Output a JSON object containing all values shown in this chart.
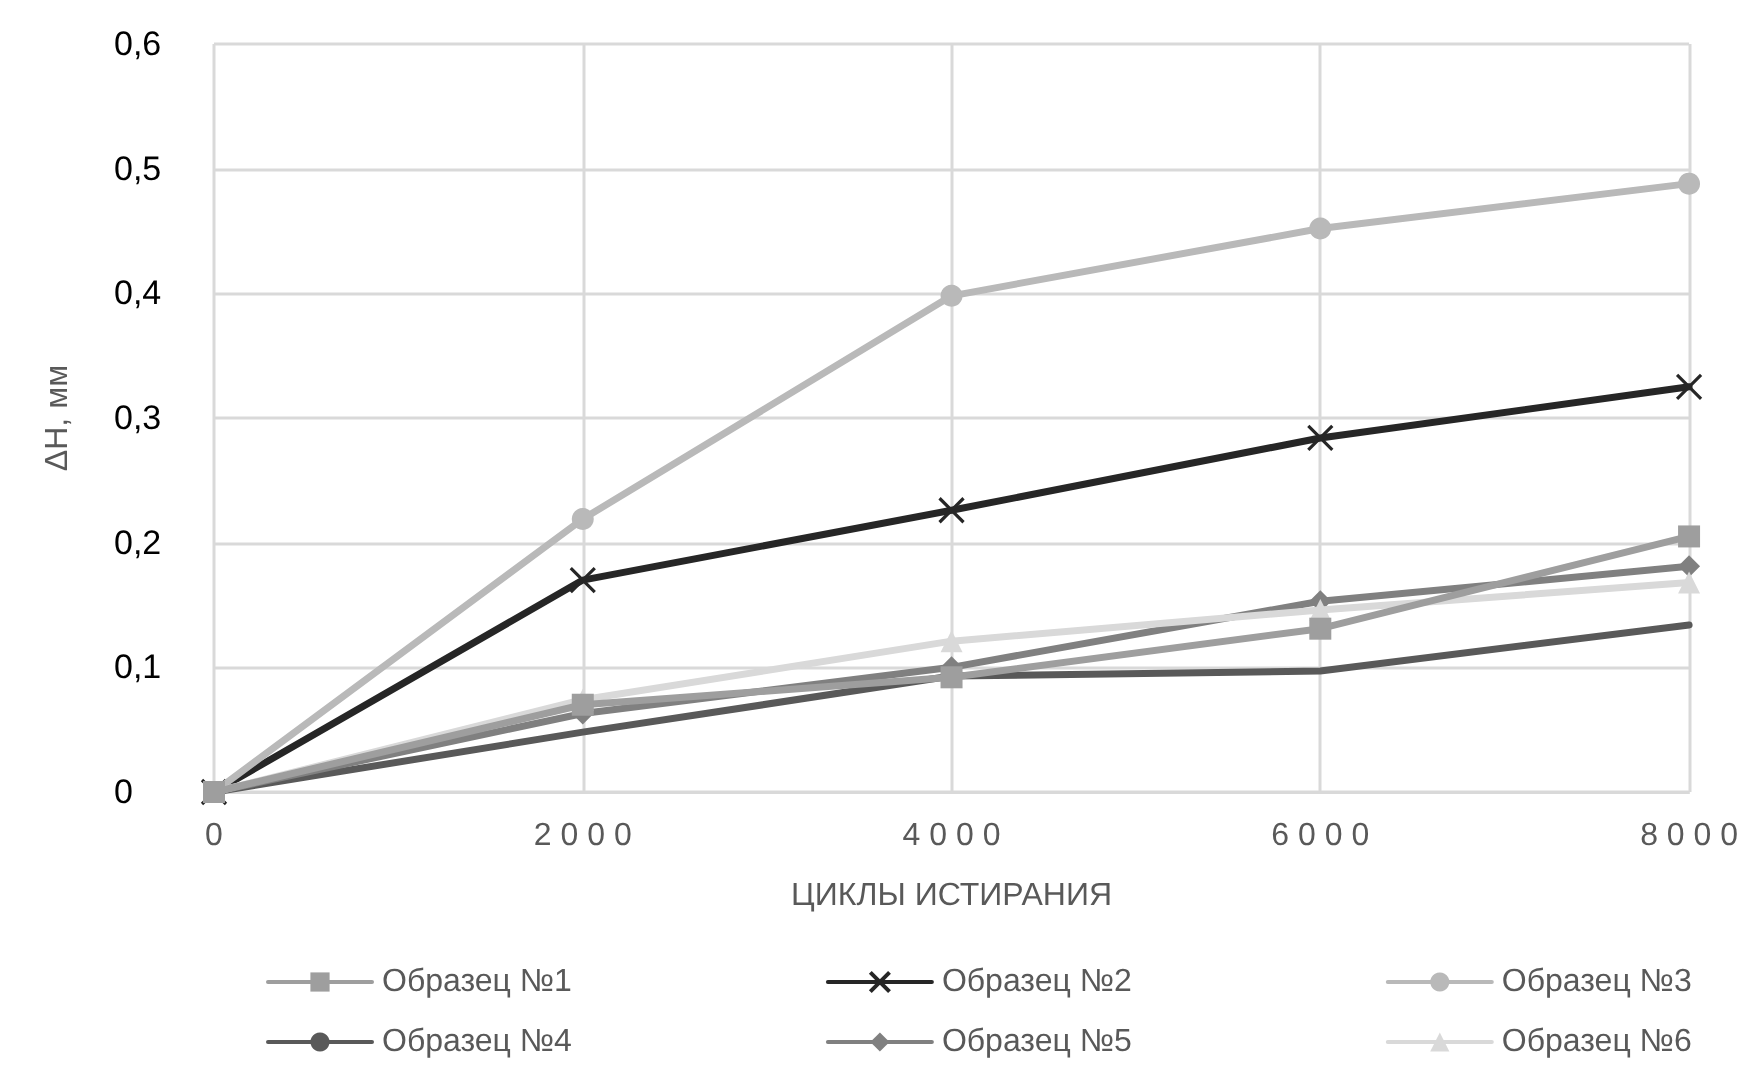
{
  "chart_data": {
    "type": "line",
    "xlabel": "ЦИКЛЫ ИСТИРАНИЯ",
    "ylabel": "ΔH, мм",
    "x": [
      0,
      2000,
      4000,
      6000,
      8000
    ],
    "series": [
      {
        "name": "Образец №1",
        "color": "#9e9e9e",
        "marker": "square",
        "values": [
          0,
          0.07,
          0.092,
          0.131,
          0.205
        ]
      },
      {
        "name": "Образец №2",
        "color": "#262626",
        "marker": "cross",
        "values": [
          0,
          0.17,
          0.226,
          0.284,
          0.325
        ]
      },
      {
        "name": "Образец №3",
        "color": "#b9b9b9",
        "marker": "circle",
        "values": [
          0,
          0.219,
          0.398,
          0.452,
          0.488
        ]
      },
      {
        "name": "Образец №4",
        "color": "#595959",
        "marker": "none",
        "values": [
          0,
          0.048,
          0.093,
          0.097,
          0.134
        ]
      },
      {
        "name": "Образец №5",
        "color": "#808080",
        "marker": "diamond",
        "values": [
          0,
          0.063,
          0.1,
          0.153,
          0.181
        ]
      },
      {
        "name": "Образец №6",
        "color": "#d9d9d9",
        "marker": "triangle",
        "values": [
          0,
          0.074,
          0.121,
          0.146,
          0.168
        ]
      }
    ],
    "xlim": [
      0,
      8000
    ],
    "xticks": [
      0,
      2000,
      4000,
      6000,
      8000
    ],
    "ylim": [
      0,
      0.6
    ],
    "yticks": [
      0,
      {
        "value": 0.1,
        "label": "0,1"
      },
      {
        "value": 0.2,
        "label": "0,2"
      },
      {
        "value": 0.3,
        "label": "0,3"
      },
      {
        "value": 0.4,
        "label": "0,4"
      },
      {
        "value": 0.5,
        "label": "0,5"
      },
      {
        "value": 0.6,
        "label": "0,6"
      }
    ],
    "grid": true,
    "legend": "bottom"
  }
}
